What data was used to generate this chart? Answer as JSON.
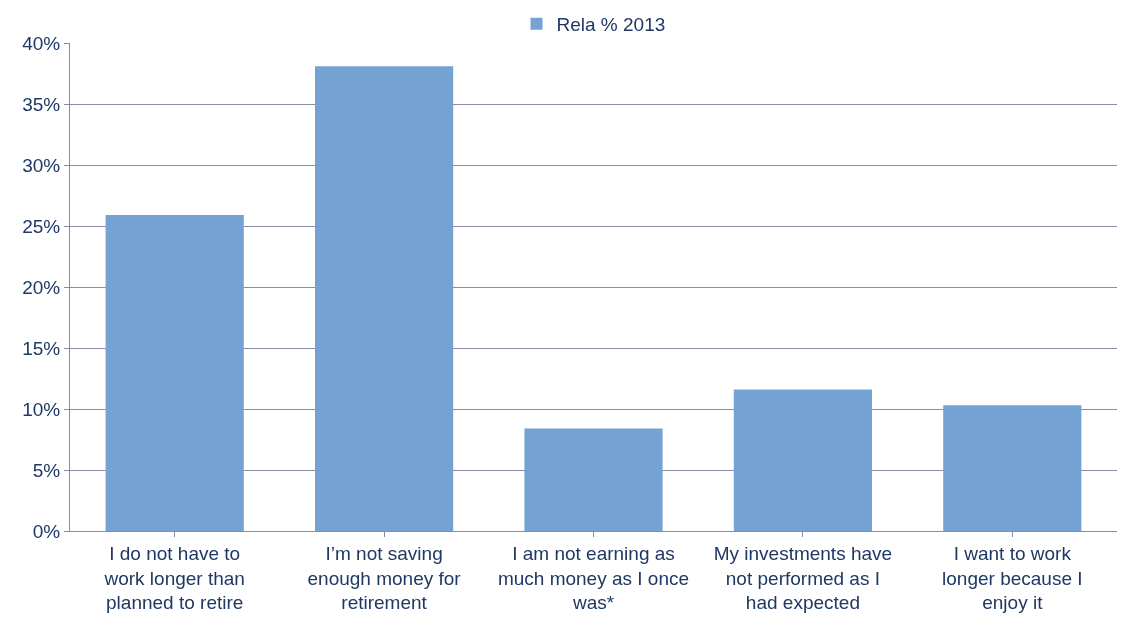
{
  "chart_data": {
    "type": "bar",
    "categories": [
      "I do not have to work longer than planned to retire",
      "I’m not saving enough money for retirement",
      "I am not earning as much money as I once was*",
      "My investments have not performed as I had expected",
      "I want to work longer because I enjoy it"
    ],
    "series": [
      {
        "name": "Rela % 2013",
        "color": "#74a3d3",
        "values": [
          25.9,
          38.1,
          8.4,
          11.6,
          10.3
        ]
      }
    ],
    "ylim": [
      0,
      40
    ],
    "yticks": [
      {
        "value": 0,
        "label": "0%"
      },
      {
        "value": 5,
        "label": "5%"
      },
      {
        "value": 10,
        "label": "10%"
      },
      {
        "value": 15,
        "label": "15%"
      },
      {
        "value": 20,
        "label": "20%"
      },
      {
        "value": 25,
        "label": "25%"
      },
      {
        "value": 30,
        "label": "30%"
      },
      {
        "value": 35,
        "label": "35%"
      },
      {
        "value": 40,
        "label": "40%"
      }
    ],
    "grid": "y",
    "legend": "top"
  }
}
